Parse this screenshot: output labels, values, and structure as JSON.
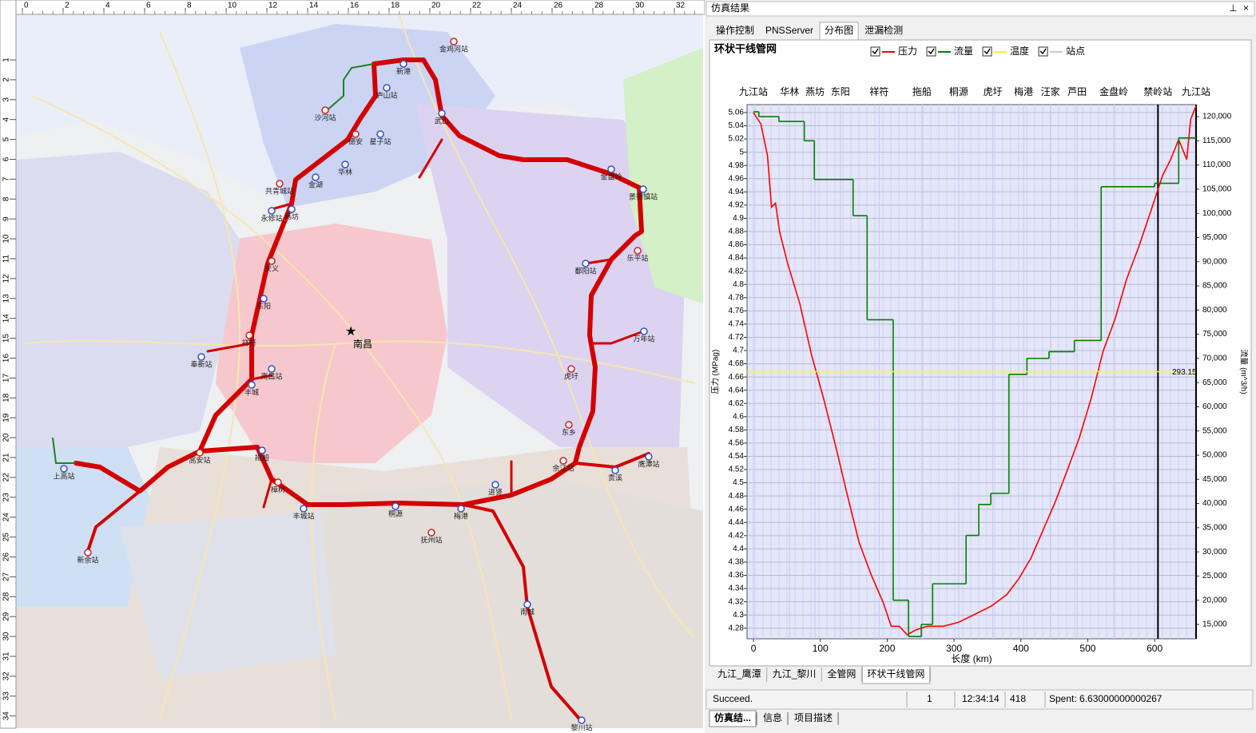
{
  "map": {
    "ruler_top": [
      0,
      2,
      4,
      6,
      8,
      10,
      12,
      14,
      16,
      18,
      20,
      22,
      24,
      26,
      28,
      30,
      32
    ],
    "ruler_left": [
      1,
      2,
      3,
      4,
      5,
      6,
      7,
      8,
      9,
      10,
      11,
      12,
      13,
      14,
      15,
      16,
      17,
      18,
      19,
      20,
      21,
      22,
      23,
      24,
      25,
      26,
      27,
      28,
      29,
      30,
      31,
      32,
      33,
      34
    ],
    "city": "南昌",
    "stations": [
      "沙河站",
      "庐山站",
      "新港",
      "金鸡河站",
      "武山",
      "星子站",
      "德安",
      "华林",
      "金湖",
      "共青城站",
      "永修站",
      "燕坊",
      "安义",
      "东阳",
      "奉新站",
      "祥符",
      "南昌站",
      "丰城",
      "高安站",
      "上高站",
      "拖船",
      "樟树",
      "丰城站",
      "桐源",
      "抚州站",
      "梅港",
      "进贤",
      "余江站",
      "鹰潭站",
      "贵溪",
      "东乡",
      "万年站",
      "鄱阳站",
      "乐平站",
      "景德镇站",
      "金盘岭",
      "虎圩",
      "南城",
      "黎川站",
      "新余站"
    ]
  },
  "panel": {
    "title": "仿真结果",
    "tabs": [
      "操作控制",
      "PNSServer",
      "分布图",
      "泄漏检测"
    ],
    "bottom_tabs": [
      "九江_鹰潭",
      "九江_黎川",
      "全管网",
      "环状干线管网"
    ],
    "status": [
      "Succeed.",
      1,
      "12:34:14",
      418,
      "Spent: 6.63000000000267"
    ],
    "taskbar": [
      "仿真结...",
      "信息",
      "项目描述"
    ]
  },
  "chart_data": {
    "type": "line",
    "title": "环状干线管网",
    "x_label": "长度 (km)",
    "y_label": "压力 (MPag)",
    "y2_label": "流量 (m^3/h)",
    "xlim": [
      -9.6,
      662
    ],
    "xticks": [
      0,
      100,
      200,
      300,
      400,
      500,
      600
    ],
    "ylim": [
      4.264,
      5.072
    ],
    "yticks": [
      4.28,
      4.3,
      4.32,
      4.34,
      4.36,
      4.38,
      4.4,
      4.42,
      4.44,
      4.46,
      4.48,
      4.5,
      4.52,
      4.54,
      4.56,
      4.58,
      4.6,
      4.62,
      4.64,
      4.66,
      4.68,
      4.7,
      4.72,
      4.74,
      4.76,
      4.78,
      4.8,
      4.82,
      4.84,
      4.86,
      4.88,
      4.9,
      4.92,
      4.94,
      4.96,
      4.98,
      5,
      5.02,
      5.04,
      5.06
    ],
    "y2lim": [
      12030,
      122480
    ],
    "y2ticks": [
      {
        "value": 15000,
        "label": "15,000"
      },
      {
        "value": 20000,
        "label": "20,000"
      },
      {
        "value": 25000,
        "label": "25,000"
      },
      {
        "value": 30000,
        "label": "30,000"
      },
      {
        "value": 35000,
        "label": "35,000"
      },
      {
        "value": 40000,
        "label": "40,000"
      },
      {
        "value": 45000,
        "label": "45,000"
      },
      {
        "value": 50000,
        "label": "50,000"
      },
      {
        "value": 55000,
        "label": "55,000"
      },
      {
        "value": 60000,
        "label": "60,000"
      },
      {
        "value": 65000,
        "label": "65,000"
      },
      {
        "value": 70000,
        "label": "70,000"
      },
      {
        "value": 75000,
        "label": "75,000"
      },
      {
        "value": 80000,
        "label": "80,000"
      },
      {
        "value": 85000,
        "label": "85,000"
      },
      {
        "value": 90000,
        "label": "90,000"
      },
      {
        "value": 95000,
        "label": "95,000"
      },
      {
        "value": 100000,
        "label": "100,000"
      },
      {
        "value": 105000,
        "label": "105,000"
      },
      {
        "value": 110000,
        "label": "110,000"
      },
      {
        "value": 115000,
        "label": "115,000"
      },
      {
        "value": 120000,
        "label": "120,000"
      }
    ],
    "y3lim": [
      288.3,
      298
    ],
    "grid": true,
    "station_labels": [
      "九江站",
      "华林",
      "燕坊",
      "东阳",
      "祥符",
      "拖船",
      "桐源",
      "虎圩",
      "梅港",
      "汪家",
      "芦田",
      "金盘岭",
      "禁岭站",
      "九江站"
    ],
    "series": [
      {
        "name": "压力",
        "color": "#ff0000",
        "x": [
          0,
          11,
          21,
          27,
          33,
          39,
          51,
          69,
          87,
          105,
          123,
          140,
          158,
          176,
          194,
          206,
          218,
          230,
          242,
          260,
          284,
          307,
          331,
          355,
          379,
          397,
          415,
          433,
          451,
          469,
          487,
          505,
          523,
          541,
          558,
          576,
          594,
          612,
          624,
          636,
          648,
          654,
          662
        ],
        "values": [
          5.06,
          5.043,
          4.995,
          4.917,
          4.923,
          4.88,
          4.832,
          4.772,
          4.693,
          4.627,
          4.555,
          4.483,
          4.41,
          4.361,
          4.319,
          4.283,
          4.283,
          4.27,
          4.277,
          4.283,
          4.283,
          4.289,
          4.301,
          4.313,
          4.331,
          4.355,
          4.386,
          4.428,
          4.47,
          4.518,
          4.567,
          4.627,
          4.699,
          4.748,
          4.808,
          4.856,
          4.91,
          4.965,
          4.989,
          5.019,
          4.989,
          5.05,
          5.07
        ]
      },
      {
        "name": "流量",
        "color": "#008000",
        "axis": "y2",
        "step": true,
        "x": [
          0,
          8,
          38,
          76,
          91,
          149,
          170,
          209,
          232,
          251,
          268,
          318,
          337,
          355,
          382,
          409,
          442,
          480,
          520,
          600,
          636,
          662
        ],
        "values": [
          121000,
          120000,
          119000,
          115000,
          107000,
          99500,
          78000,
          20000,
          12500,
          15000,
          23400,
          33400,
          39800,
          42100,
          66700,
          70000,
          71400,
          73700,
          105500,
          106200,
          115600,
          115600
        ]
      },
      {
        "name": "温度",
        "color": "#ffff00",
        "axis": "y3",
        "x": [
          -9.6,
          662
        ],
        "values": [
          293.15,
          293.15
        ]
      },
      {
        "name": "站点",
        "color": "#c4c8f0",
        "x": [
          0,
          54,
          92,
          130,
          188,
          252,
          307,
          358,
          404,
          444,
          484,
          539,
          605,
          662
        ]
      }
    ]
  }
}
